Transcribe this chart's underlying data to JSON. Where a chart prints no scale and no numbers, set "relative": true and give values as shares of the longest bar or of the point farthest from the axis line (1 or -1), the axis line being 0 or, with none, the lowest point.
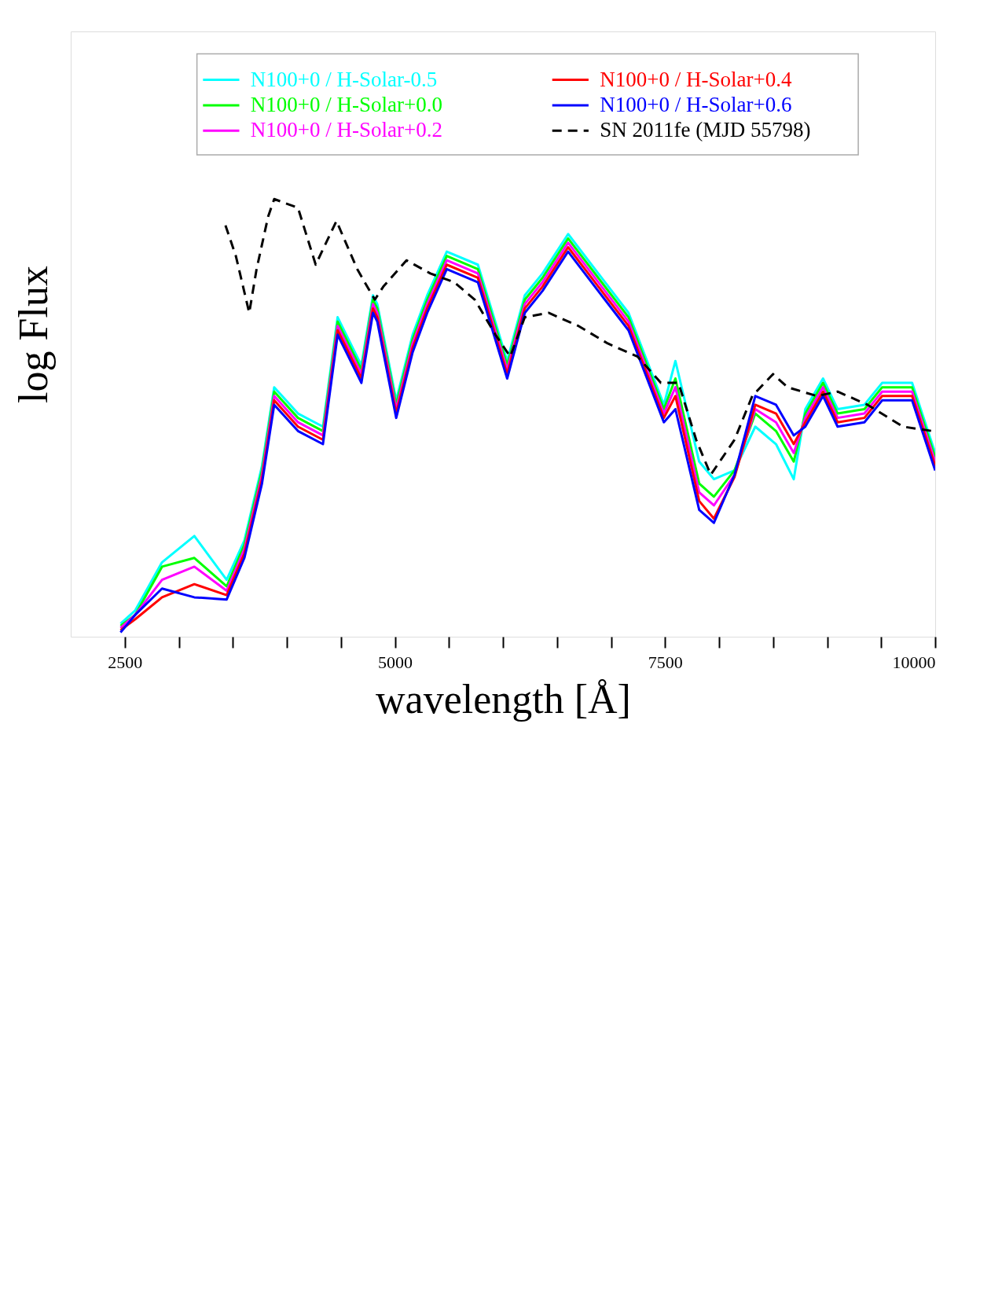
{
  "chart_data": {
    "type": "line",
    "xlabel": "wavelength [Å]",
    "ylabel": "log Flux",
    "relative": true,
    "xlim": [
      2000,
      10000
    ],
    "xticks": [
      2500,
      {
        "value": 3000,
        "label": null
      },
      {
        "value": 3500,
        "label": null
      },
      {
        "value": 4000,
        "label": null
      },
      {
        "value": 4500,
        "label": null
      },
      5000,
      {
        "value": 5500,
        "label": null
      },
      {
        "value": 6000,
        "label": null
      },
      {
        "value": 6500,
        "label": null
      },
      {
        "value": 7000,
        "label": null
      },
      7500,
      {
        "value": 8000,
        "label": null
      },
      {
        "value": 8500,
        "label": null
      },
      {
        "value": 9000,
        "label": null
      },
      {
        "value": 9500,
        "label": null
      },
      10000
    ],
    "legend": "top right",
    "grid": false,
    "x": [
      2461,
      2597,
      2845,
      3144,
      3443,
      3607,
      3770,
      3883,
      4103,
      4334,
      4470,
      4690,
      4797,
      4837,
      5012,
      5164,
      5299,
      5480,
      5768,
      6039,
      6202,
      6366,
      6603,
      6913,
      7162,
      7489,
      7596,
      7816,
      7952,
      8143,
      8335,
      8527,
      8691,
      8798,
      8962,
      9097,
      9345,
      9509,
      9786,
      10000
    ],
    "series": [
      {
        "name": "N100+0 / H-Solar-0.5",
        "color": "#00ffff",
        "values": [
          0.03,
          0.06,
          0.17,
          0.23,
          0.13,
          0.22,
          0.39,
          0.57,
          0.51,
          0.48,
          0.73,
          0.62,
          0.78,
          0.76,
          0.54,
          0.69,
          0.78,
          0.88,
          0.85,
          0.63,
          0.78,
          0.83,
          0.92,
          0.82,
          0.74,
          0.53,
          0.63,
          0.4,
          0.36,
          0.38,
          0.48,
          0.44,
          0.36,
          0.52,
          0.59,
          0.52,
          0.53,
          0.58,
          0.58,
          0.42
        ]
      },
      {
        "name": "N100+0 / H-Solar+0.0",
        "color": "#00ff00",
        "values": [
          0.025,
          0.05,
          0.16,
          0.18,
          0.115,
          0.21,
          0.38,
          0.56,
          0.5,
          0.47,
          0.72,
          0.61,
          0.77,
          0.75,
          0.53,
          0.68,
          0.77,
          0.87,
          0.84,
          0.62,
          0.77,
          0.82,
          0.91,
          0.81,
          0.73,
          0.52,
          0.59,
          0.35,
          0.32,
          0.38,
          0.51,
          0.47,
          0.4,
          0.51,
          0.58,
          0.51,
          0.52,
          0.57,
          0.57,
          0.41
        ]
      },
      {
        "name": "N100+0 / H-Solar+0.2",
        "color": "#ff00ff",
        "values": [
          0.02,
          0.05,
          0.13,
          0.16,
          0.105,
          0.2,
          0.37,
          0.55,
          0.49,
          0.46,
          0.71,
          0.6,
          0.76,
          0.74,
          0.52,
          0.67,
          0.76,
          0.86,
          0.83,
          0.61,
          0.76,
          0.81,
          0.9,
          0.8,
          0.72,
          0.51,
          0.57,
          0.33,
          0.3,
          0.37,
          0.52,
          0.49,
          0.42,
          0.5,
          0.57,
          0.5,
          0.51,
          0.56,
          0.56,
          0.4
        ]
      },
      {
        "name": "N100+0 / H-Solar+0.4",
        "color": "#ff0000",
        "values": [
          0.015,
          0.04,
          0.09,
          0.12,
          0.095,
          0.19,
          0.36,
          0.54,
          0.48,
          0.45,
          0.7,
          0.59,
          0.75,
          0.73,
          0.51,
          0.66,
          0.75,
          0.85,
          0.82,
          0.6,
          0.75,
          0.8,
          0.89,
          0.79,
          0.71,
          0.5,
          0.55,
          0.31,
          0.27,
          0.365,
          0.53,
          0.51,
          0.44,
          0.49,
          0.56,
          0.49,
          0.5,
          0.55,
          0.55,
          0.39
        ]
      },
      {
        "name": "N100+0 / H-Solar+0.6",
        "color": "#0000ff",
        "values": [
          0.01,
          0.05,
          0.11,
          0.09,
          0.085,
          0.18,
          0.35,
          0.53,
          0.47,
          0.44,
          0.69,
          0.58,
          0.74,
          0.72,
          0.5,
          0.65,
          0.74,
          0.84,
          0.81,
          0.59,
          0.74,
          0.79,
          0.88,
          0.78,
          0.7,
          0.49,
          0.52,
          0.29,
          0.26,
          0.37,
          0.55,
          0.53,
          0.46,
          0.48,
          0.55,
          0.48,
          0.49,
          0.54,
          0.54,
          0.38
        ]
      },
      {
        "name": "SN 2011fe (MJD 55798)",
        "color": "#000000",
        "line_style": "dashed",
        "x": [
          3432,
          3528,
          3652,
          3720,
          3827,
          3883,
          4103,
          4267,
          4459,
          4651,
          4814,
          4893,
          5107,
          5328,
          5548,
          5740,
          5931,
          6067,
          6202,
          6422,
          6699,
          6970,
          7246,
          7461,
          7624,
          7788,
          7923,
          8143,
          8307,
          8499,
          8634,
          8905,
          9097,
          9374,
          9701,
          9972
        ],
        "values": [
          0.94,
          0.87,
          0.74,
          0.84,
          0.96,
          1.0,
          0.98,
          0.85,
          0.95,
          0.84,
          0.77,
          0.8,
          0.86,
          0.83,
          0.81,
          0.77,
          0.69,
          0.64,
          0.73,
          0.74,
          0.71,
          0.67,
          0.64,
          0.58,
          0.58,
          0.45,
          0.37,
          0.45,
          0.55,
          0.6,
          0.57,
          0.55,
          0.56,
          0.53,
          0.48,
          0.47
        ]
      }
    ]
  }
}
